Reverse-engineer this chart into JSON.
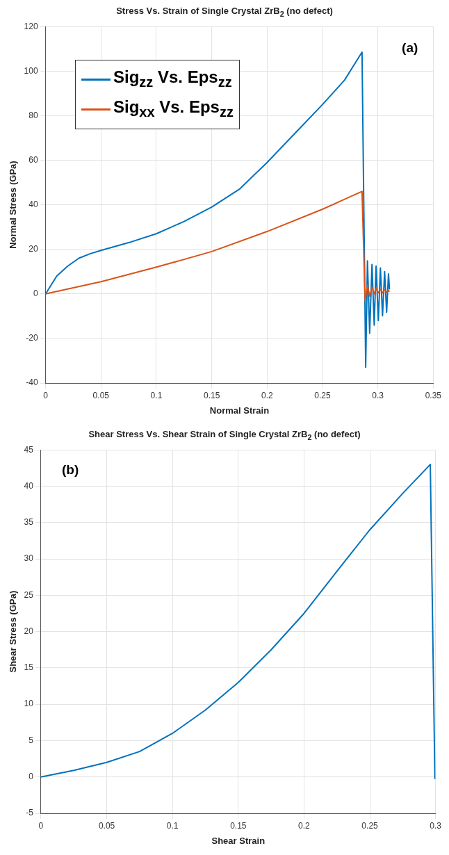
{
  "chart_data": [
    {
      "type": "line",
      "title": "Stress Vs. Strain of Single Crystal ZrB$_{2}$ (no defect)",
      "xlabel": "Normal Strain",
      "ylabel": "Normal Stress (GPa)",
      "xlim": [
        0,
        0.35
      ],
      "xticks": [
        0,
        0.05,
        0.1,
        0.15,
        0.2,
        0.25,
        0.3,
        0.35
      ],
      "ylim": [
        -40,
        120
      ],
      "yticks": [
        -40,
        -20,
        0,
        20,
        40,
        60,
        80,
        100,
        120
      ],
      "grid": true,
      "legend": "top left",
      "marker": "none",
      "annotations": [
        "(a)"
      ],
      "series": [
        {
          "name": "Sig$_{zz}$ Vs. Eps$_{zz}$",
          "color": "#0072bd",
          "x": [
            0,
            0.005,
            0.01,
            0.02,
            0.03,
            0.04,
            0.05,
            0.075,
            0.1,
            0.125,
            0.15,
            0.175,
            0.2,
            0.225,
            0.25,
            0.27,
            0.2857,
            0.289,
            0.2906,
            0.2926,
            0.2947,
            0.2967,
            0.2984,
            0.3004,
            0.3023,
            0.3042,
            0.3061,
            0.3079,
            0.3096,
            0.3105
          ],
          "values": [
            0,
            4,
            8,
            12.5,
            16,
            18,
            19.5,
            23,
            27,
            32.5,
            39,
            47,
            59,
            72,
            85,
            96,
            108.5,
            -33,
            14.8,
            -17.6,
            13.2,
            -14,
            12.5,
            -12,
            11.6,
            -9.8,
            10,
            -8.2,
            9,
            2
          ]
        },
        {
          "name": "Sig$_{xx}$ Vs. Eps$_{zz}$",
          "color": "#d95319",
          "x": [
            0,
            0.05,
            0.1,
            0.15,
            0.2,
            0.25,
            0.2857,
            0.2885,
            0.2906,
            0.2926,
            0.2947,
            0.2967,
            0.2984,
            0.3004,
            0.3023,
            0.3042,
            0.3061,
            0.3079,
            0.3096,
            0.3105
          ],
          "values": [
            0,
            5.5,
            12,
            19,
            28,
            38,
            46,
            -3,
            4,
            -1,
            3,
            0,
            2.5,
            0.5,
            2,
            0.5,
            1.8,
            0.8,
            1.5,
            1
          ]
        }
      ]
    },
    {
      "type": "line",
      "title": "Shear Stress Vs. Shear Strain of Single Crystal ZrB$_{2}$ (no defect)",
      "xlabel": "Shear Strain",
      "ylabel": "Shear Stress (GPa)",
      "xlim": [
        0,
        0.3
      ],
      "xticks": [
        0,
        0.05,
        0.1,
        0.15,
        0.2,
        0.25,
        0.3
      ],
      "ylim": [
        -5,
        45
      ],
      "yticks": [
        -5,
        0,
        5,
        10,
        15,
        20,
        25,
        30,
        35,
        40,
        45
      ],
      "grid": true,
      "marker": "none",
      "annotations": [
        "(b)"
      ],
      "series": [
        {
          "color": "#0072bd",
          "x": [
            0,
            0.025,
            0.05,
            0.075,
            0.1,
            0.125,
            0.15,
            0.175,
            0.2,
            0.225,
            0.25,
            0.275,
            0.296,
            0.2995
          ],
          "values": [
            0,
            0.9,
            2,
            3.5,
            6,
            9.2,
            13,
            17.5,
            22.5,
            28.3,
            34,
            39,
            43,
            -0.3
          ]
        }
      ]
    }
  ]
}
